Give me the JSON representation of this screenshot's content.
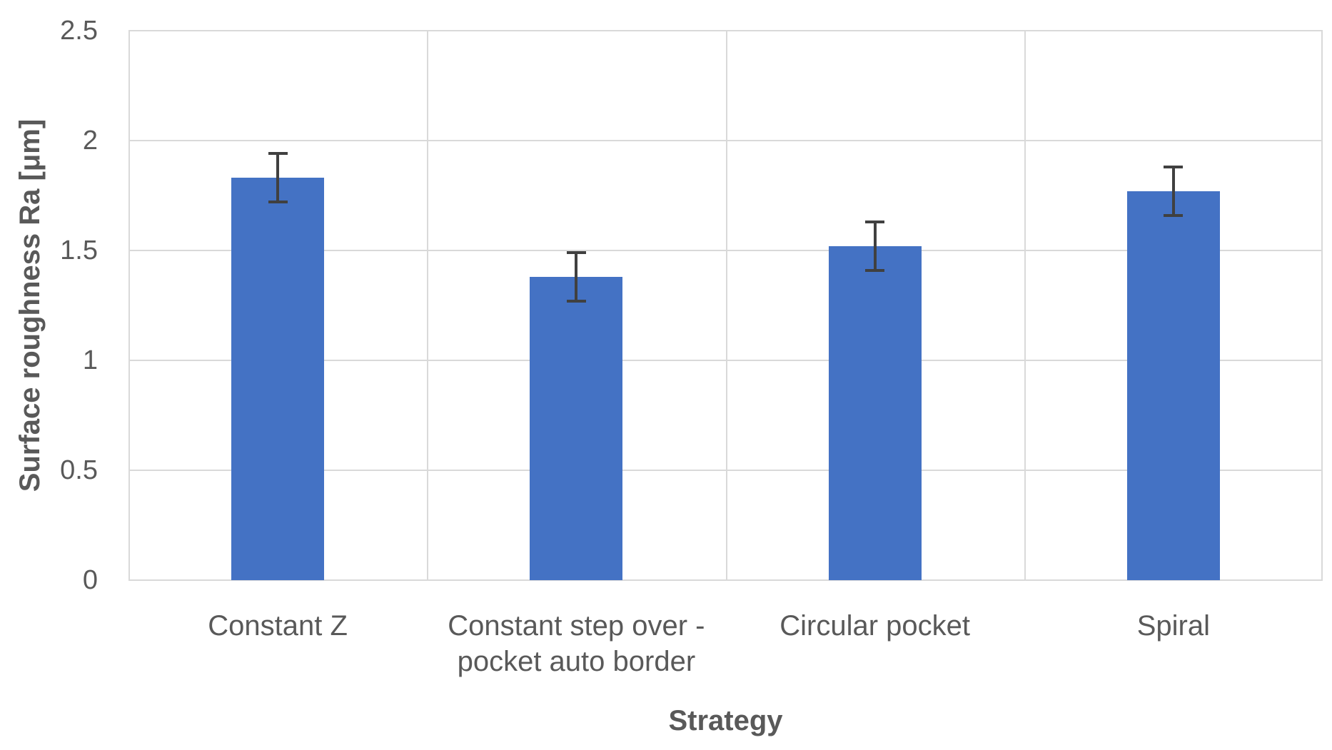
{
  "chart_data": {
    "type": "bar",
    "title": "",
    "xlabel": "Strategy",
    "ylabel": "Surface roughness Ra [μm]",
    "categories": [
      "Constant Z",
      "Constant step over -\npocket auto border",
      "Circular pocket",
      "Spiral"
    ],
    "series": [
      {
        "name": "Surface roughness Ra",
        "values": [
          1.83,
          1.38,
          1.52,
          1.77
        ],
        "error_bars": [
          0.11,
          0.11,
          0.11,
          0.11
        ]
      }
    ],
    "ylim": [
      0,
      2.5
    ],
    "yticks": [
      0,
      0.5,
      1,
      1.5,
      2,
      2.5
    ],
    "ytick_labels": [
      "0",
      "0.5",
      "1",
      "1.5",
      "2",
      "2.5"
    ],
    "grid": "on",
    "legend": "none",
    "colors": {
      "bar": "#4472C4",
      "error_bar": "#404040",
      "gridline": "#D9D9D9",
      "text": "#595959"
    }
  }
}
